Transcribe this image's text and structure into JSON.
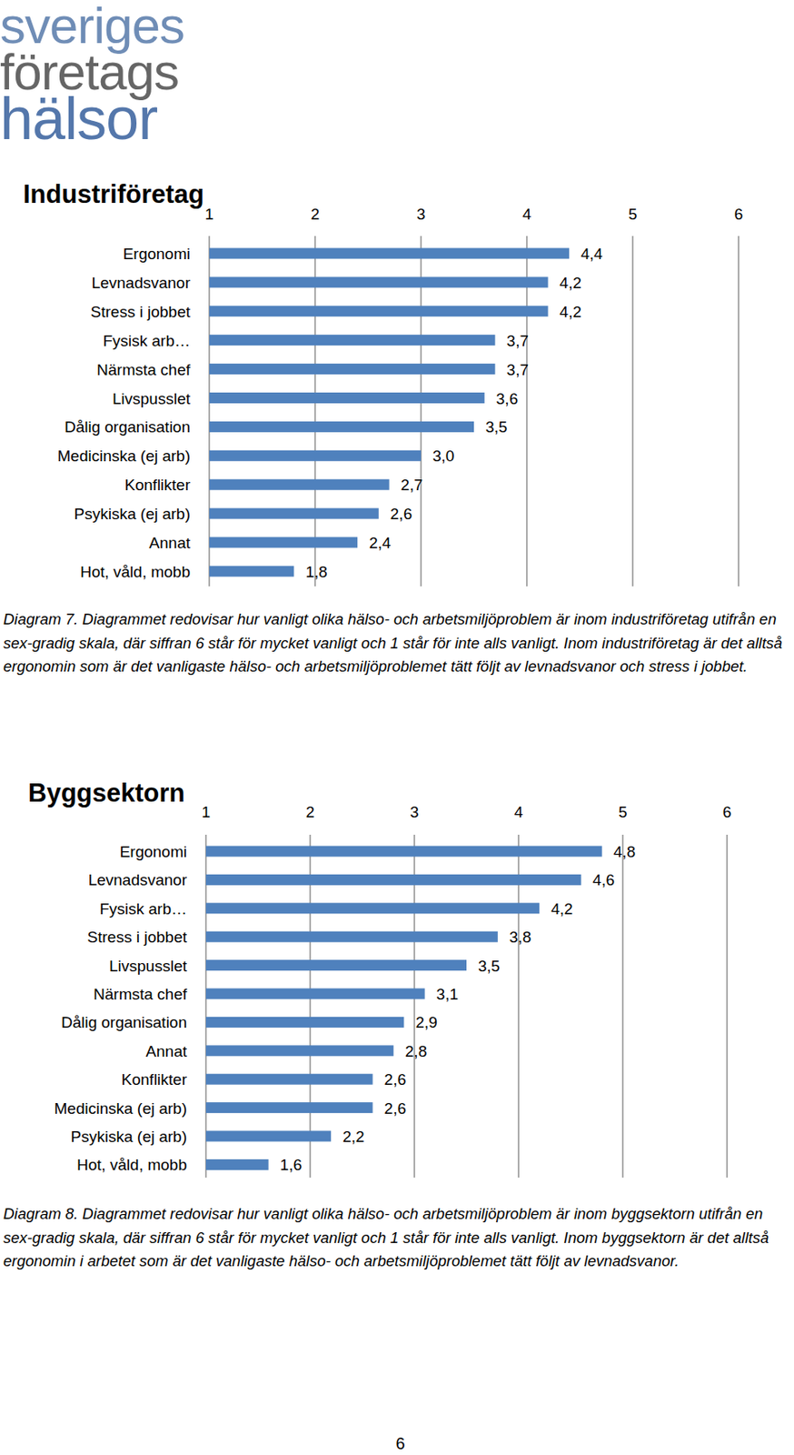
{
  "page": {
    "logo": [
      "sveriges",
      "företags",
      "hälsor"
    ],
    "page_number": 6
  },
  "chart_data": [
    {
      "type": "bar",
      "title": "Industriföretag",
      "orientation": "horizontal",
      "grid": true,
      "data_labels": true,
      "color": "#4f81bd",
      "categories": [
        "Ergonomi",
        "Levnadsvanor",
        "Stress i jobbet",
        "Fysisk arb…",
        "Närmsta chef",
        "Livspusslet",
        "Dålig organisation",
        "Medicinska (ej arb)",
        "Konflikter",
        "Psykiska (ej arb)",
        "Annat",
        "Hot, våld, mobb"
      ],
      "values": [
        4.4,
        4.2,
        4.2,
        3.7,
        3.7,
        3.6,
        3.5,
        3.0,
        2.7,
        2.6,
        2.4,
        1.8
      ],
      "value_labels": [
        "4,4",
        "4,2",
        "4,2",
        "3,7",
        "3,7",
        "3,6",
        "3,5",
        "3,0",
        "2,7",
        "2,6",
        "2,4",
        "1,8"
      ],
      "xlim": [
        1,
        6
      ],
      "xticks": [
        1,
        2,
        3,
        4,
        5,
        6
      ],
      "caption": "Diagram 7. Diagrammet redovisar hur vanligt olika hälso- och arbetsmiljöproblem är inom industriföretag utifrån en sex-gradig skala, där siffran 6 står för mycket vanligt och 1 står för inte alls vanligt. Inom industriföretag är det alltså ergonomin som är det vanligaste hälso- och arbetsmiljöproblemet tätt följt av levnadsvanor och stress i jobbet."
    },
    {
      "type": "bar",
      "title": "Byggsektorn",
      "orientation": "horizontal",
      "grid": true,
      "data_labels": true,
      "color": "#4f81bd",
      "categories": [
        "Ergonomi",
        "Levnadsvanor",
        "Fysisk arb…",
        "Stress i jobbet",
        "Livspusslet",
        "Närmsta chef",
        "Dålig organisation",
        "Annat",
        "Konflikter",
        "Medicinska (ej arb)",
        "Psykiska (ej arb)",
        "Hot, våld, mobb"
      ],
      "values": [
        4.8,
        4.6,
        4.2,
        3.8,
        3.5,
        3.1,
        2.9,
        2.8,
        2.6,
        2.6,
        2.2,
        1.6
      ],
      "value_labels": [
        "4,8",
        "4,6",
        "4,2",
        "3,8",
        "3,5",
        "3,1",
        "2,9",
        "2,8",
        "2,6",
        "2,6",
        "2,2",
        "1,6"
      ],
      "xlim": [
        1,
        6
      ],
      "xticks": [
        1,
        2,
        3,
        4,
        5,
        6
      ],
      "caption": "Diagram 8. Diagrammet redovisar hur vanligt olika hälso- och arbetsmiljöproblem är inom byggsektorn utifrån en sex-gradig skala, där siffran 6 står för mycket vanligt och 1 står för inte alls vanligt. Inom byggsektorn är det alltså ergonomin i arbetet som är det vanligaste hälso- och arbetsmiljöproblemet tätt följt av levnadsvanor."
    }
  ]
}
